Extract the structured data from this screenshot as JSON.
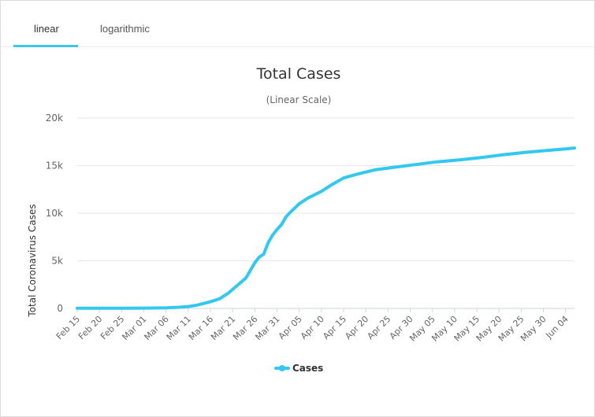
{
  "tabs": [
    {
      "label": "linear",
      "active": true
    },
    {
      "label": "logarithmic",
      "active": false
    }
  ],
  "colors": {
    "series": "#33c8f0",
    "grid": "#e6e6e6",
    "axis": "#ccd6eb",
    "text": "#333333",
    "tick": "#666666"
  },
  "chart_data": {
    "type": "line",
    "title": "Total Cases",
    "subtitle": "(Linear Scale)",
    "ylabel": "Total Coronavirus Cases",
    "xlabel": "",
    "ylim": [
      0,
      20000
    ],
    "yticks": [
      0,
      5000,
      10000,
      15000,
      20000
    ],
    "ytick_labels": [
      "0",
      "5k",
      "10k",
      "15k",
      "20k"
    ],
    "x_tick_labels": [
      "Feb 15",
      "Feb 20",
      "Feb 25",
      "Mar 01",
      "Mar 06",
      "Mar 11",
      "Mar 16",
      "Mar 21",
      "Mar 26",
      "Mar 31",
      "Apr 05",
      "Apr 10",
      "Apr 15",
      "Apr 20",
      "Apr 25",
      "Apr 30",
      "May 05",
      "May 10",
      "May 15",
      "May 20",
      "May 25",
      "May 30",
      "Jun 04"
    ],
    "x_start": "Feb 15",
    "x_end": "Jun 06",
    "legend": "bottom-center",
    "grid": true,
    "series": [
      {
        "name": "Cases",
        "points": [
          [
            "Feb 15",
            16
          ],
          [
            "Feb 20",
            16
          ],
          [
            "Feb 25",
            16
          ],
          [
            "Mar 01",
            30
          ],
          [
            "Mar 06",
            60
          ],
          [
            "Mar 09",
            120
          ],
          [
            "Mar 11",
            200
          ],
          [
            "Mar 13",
            350
          ],
          [
            "Mar 16",
            700
          ],
          [
            "Mar 18",
            1000
          ],
          [
            "Mar 20",
            1600
          ],
          [
            "Mar 22",
            2400
          ],
          [
            "Mar 24",
            3200
          ],
          [
            "Mar 26",
            4800
          ],
          [
            "Mar 27",
            5400
          ],
          [
            "Mar 28",
            5700
          ],
          [
            "Mar 29",
            6900
          ],
          [
            "Mar 30",
            7700
          ],
          [
            "Mar 31",
            8300
          ],
          [
            "Apr 01",
            8800
          ],
          [
            "Apr 02",
            9600
          ],
          [
            "Apr 03",
            10100
          ],
          [
            "Apr 05",
            11000
          ],
          [
            "Apr 07",
            11600
          ],
          [
            "Apr 10",
            12300
          ],
          [
            "Apr 12",
            12900
          ],
          [
            "Apr 15",
            13700
          ],
          [
            "Apr 18",
            14100
          ],
          [
            "Apr 22",
            14550
          ],
          [
            "Apr 26",
            14800
          ],
          [
            "May 01",
            15100
          ],
          [
            "May 06",
            15400
          ],
          [
            "May 11",
            15600
          ],
          [
            "May 16",
            15850
          ],
          [
            "May 21",
            16150
          ],
          [
            "May 26",
            16400
          ],
          [
            "May 31",
            16600
          ],
          [
            "Jun 04",
            16750
          ],
          [
            "Jun 06",
            16850
          ]
        ]
      }
    ]
  }
}
